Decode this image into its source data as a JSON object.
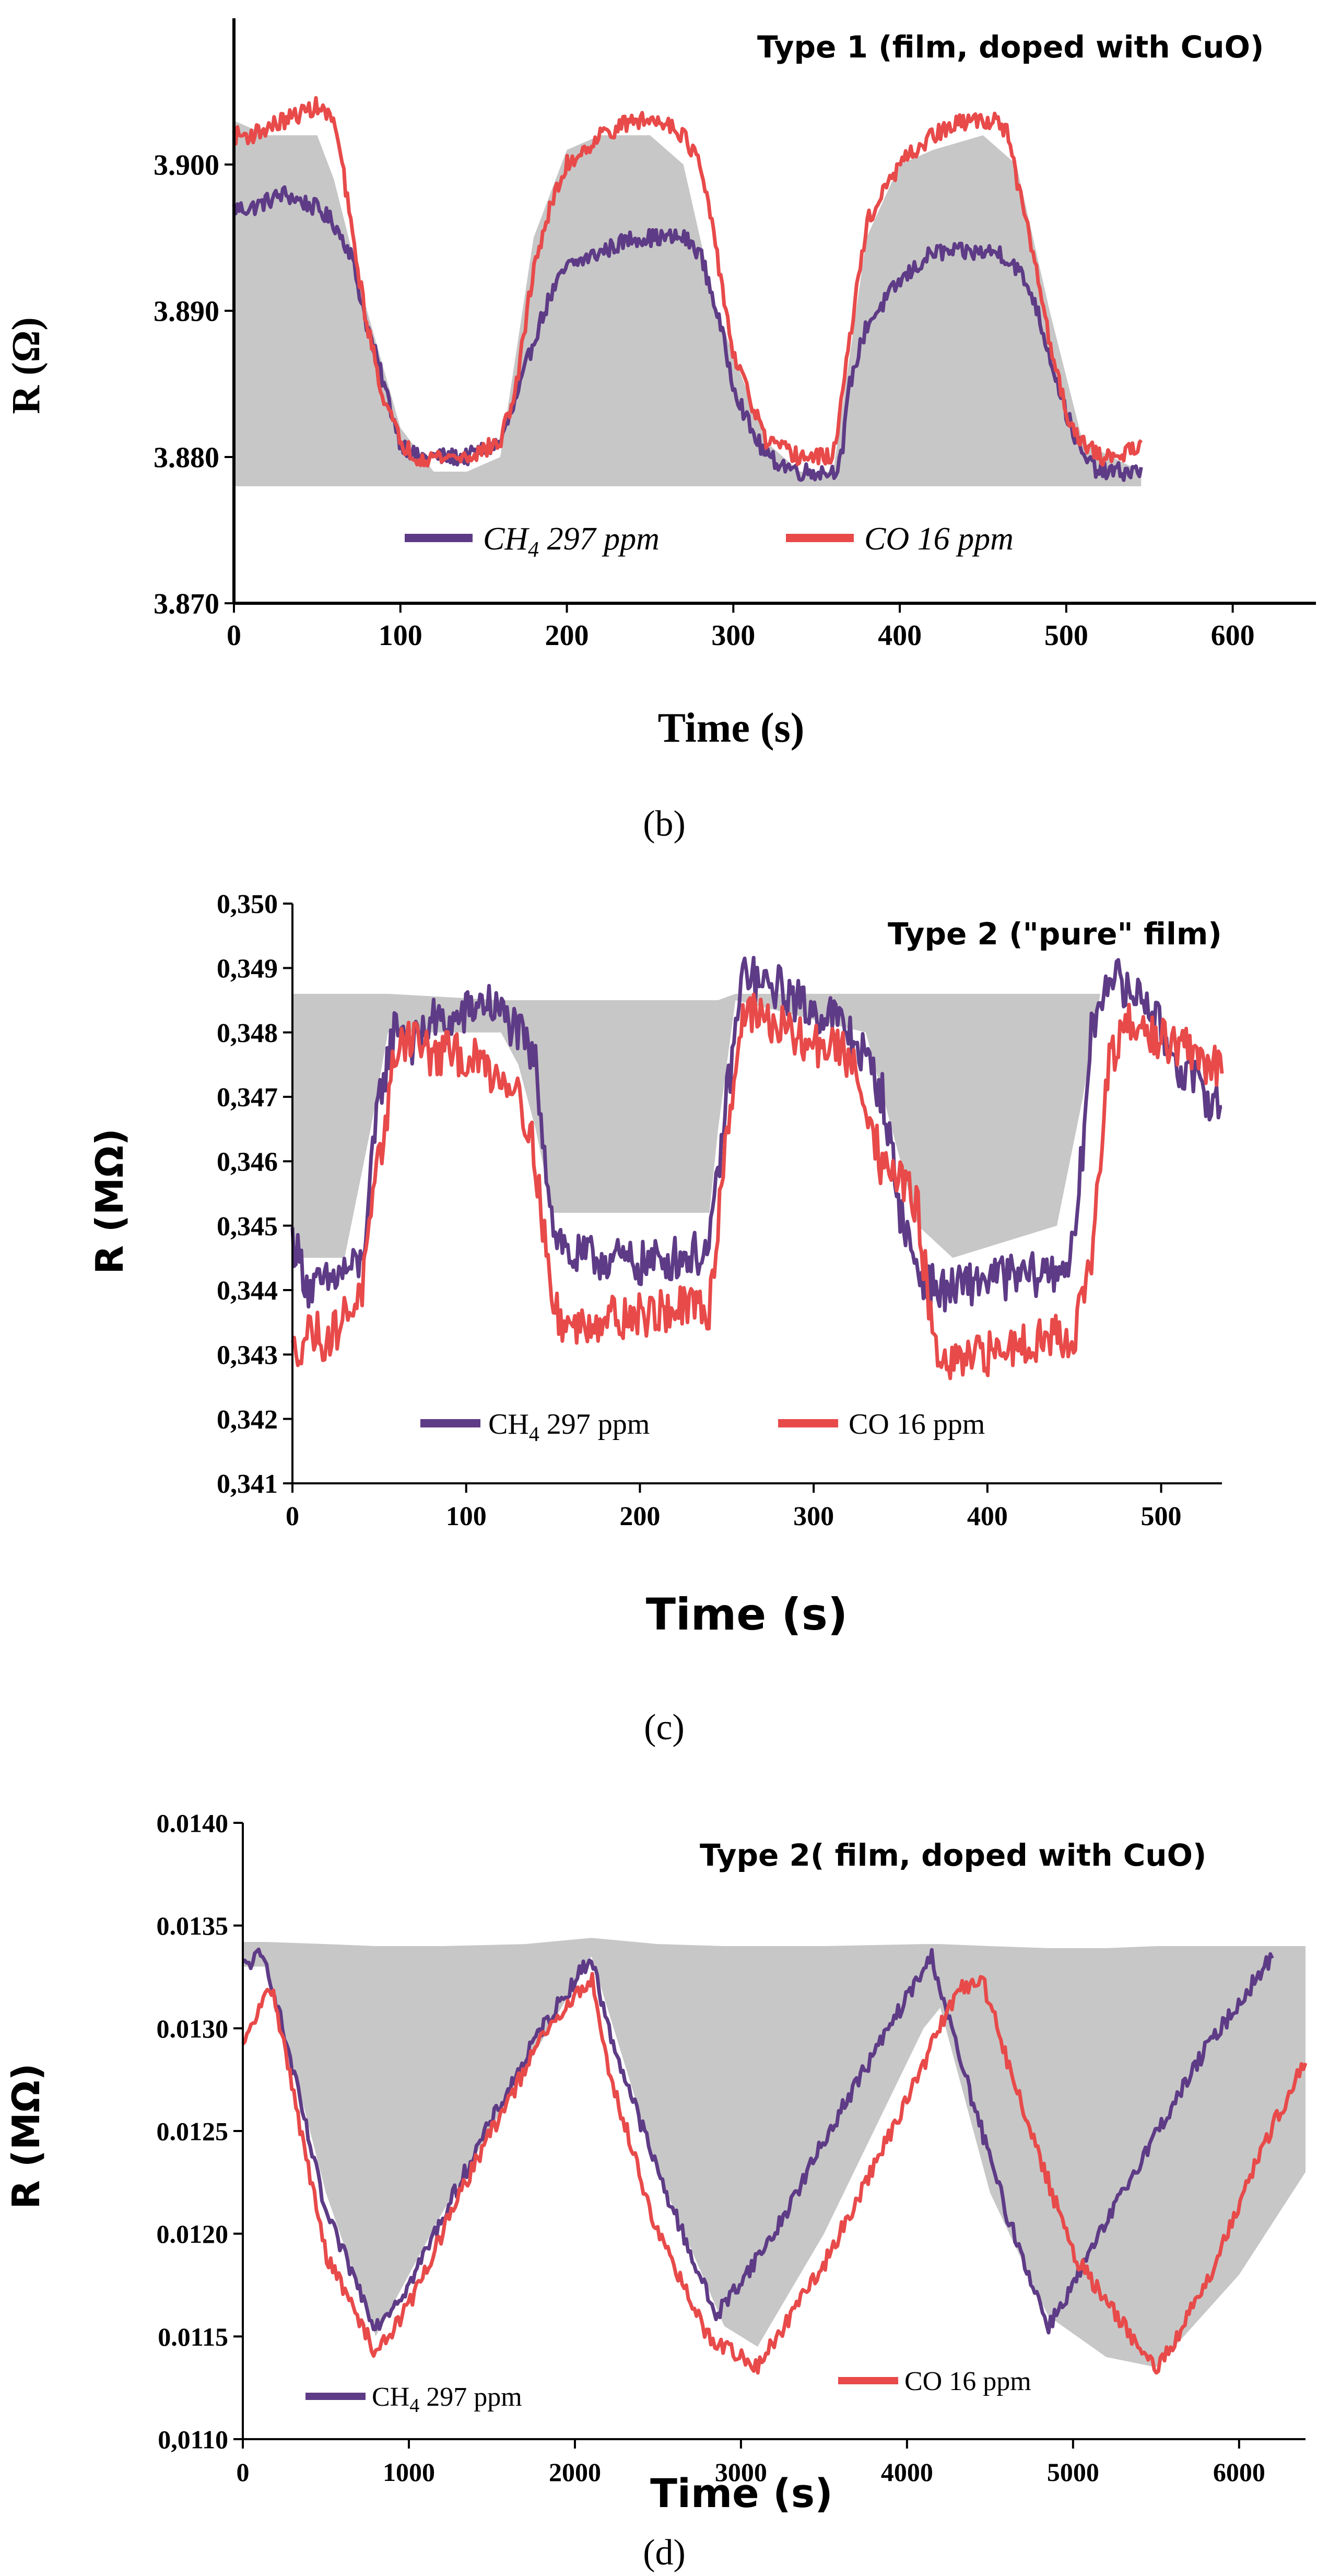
{
  "figure": {
    "colors": {
      "ch4": "#5e3b86",
      "co": "#e84a4a",
      "fill": "#c7c7c7",
      "axis": "#000000"
    }
  },
  "chart_data": [
    {
      "type": "line",
      "panel_label": "(b)",
      "title": "Type 1 (film, doped with CuO)",
      "xlabel": "Time (s)",
      "ylabel": "R (Ω)",
      "xlim": [
        0,
        650
      ],
      "ylim": [
        3.87,
        3.91
      ],
      "xticks": [
        "0",
        "100",
        "200",
        "300",
        "400",
        "500",
        "600"
      ],
      "yticks": [
        "3.870",
        "3.880",
        "3.890",
        "3.900"
      ],
      "ytick_values": [
        3.87,
        3.88,
        3.89,
        3.9
      ],
      "xtick_values": [
        0,
        100,
        200,
        300,
        400,
        500,
        600
      ],
      "legend": [
        "CH4 297 ppm",
        "CO 16 ppm"
      ],
      "legend_location": "lower-center",
      "noise": 0.0006,
      "fill_envelope": {
        "x": [
          0,
          20,
          50,
          60,
          80,
          100,
          120,
          140,
          160,
          180,
          200,
          220,
          250,
          270,
          290,
          320,
          340,
          360,
          380,
          400,
          420,
          450,
          470,
          490,
          510,
          545
        ],
        "upper": [
          3.903,
          3.902,
          3.902,
          3.899,
          3.89,
          3.882,
          3.879,
          3.879,
          3.88,
          3.895,
          3.901,
          3.902,
          3.902,
          3.9,
          3.89,
          3.881,
          3.879,
          3.879,
          3.895,
          3.9,
          3.901,
          3.902,
          3.9,
          3.89,
          3.881,
          3.879
        ],
        "lower": [
          3.878,
          3.878,
          3.878,
          3.878,
          3.878,
          3.878,
          3.878,
          3.878,
          3.878,
          3.878,
          3.878,
          3.878,
          3.878,
          3.878,
          3.878,
          3.878,
          3.878,
          3.878,
          3.878,
          3.878,
          3.878,
          3.878,
          3.878,
          3.878,
          3.878,
          3.878
        ]
      },
      "series": [
        {
          "name": "CH4 297 ppm",
          "color_key": "ch4",
          "x": [
            0,
            10,
            30,
            50,
            60,
            70,
            80,
            90,
            100,
            110,
            120,
            140,
            160,
            170,
            180,
            190,
            200,
            220,
            240,
            260,
            270,
            280,
            290,
            300,
            310,
            320,
            340,
            350,
            360,
            365,
            370,
            380,
            400,
            420,
            440,
            460,
            470,
            480,
            490,
            500,
            510,
            520,
            530,
            545
          ],
          "y": [
            3.897,
            3.897,
            3.898,
            3.897,
            3.896,
            3.894,
            3.889,
            3.885,
            3.881,
            3.88,
            3.88,
            3.88,
            3.881,
            3.884,
            3.888,
            3.891,
            3.893,
            3.894,
            3.895,
            3.895,
            3.895,
            3.894,
            3.89,
            3.885,
            3.882,
            3.88,
            3.879,
            3.879,
            3.879,
            3.88,
            3.885,
            3.889,
            3.892,
            3.894,
            3.894,
            3.894,
            3.893,
            3.891,
            3.887,
            3.883,
            3.88,
            3.879,
            3.879,
            3.879
          ]
        },
        {
          "name": "CO 16 ppm",
          "color_key": "co",
          "x": [
            0,
            10,
            30,
            50,
            60,
            65,
            70,
            80,
            90,
            100,
            110,
            120,
            140,
            160,
            170,
            180,
            190,
            200,
            220,
            240,
            260,
            270,
            280,
            290,
            300,
            320,
            340,
            350,
            360,
            370,
            380,
            400,
            420,
            440,
            460,
            465,
            470,
            480,
            490,
            500,
            510,
            520,
            530,
            545
          ],
          "y": [
            3.902,
            3.902,
            3.903,
            3.904,
            3.903,
            3.9,
            3.896,
            3.889,
            3.884,
            3.881,
            3.88,
            3.88,
            3.88,
            3.881,
            3.885,
            3.893,
            3.897,
            3.9,
            3.902,
            3.903,
            3.903,
            3.902,
            3.9,
            3.894,
            3.887,
            3.881,
            3.88,
            3.88,
            3.88,
            3.888,
            3.896,
            3.9,
            3.902,
            3.903,
            3.903,
            3.902,
            3.899,
            3.894,
            3.888,
            3.883,
            3.881,
            3.88,
            3.88,
            3.881
          ]
        }
      ]
    },
    {
      "type": "line",
      "panel_label": "(c)",
      "title": "Type 2 (\"pure\" film)",
      "xlabel": "Time (s)",
      "ylabel": "R (MΩ)",
      "xlim": [
        0,
        535
      ],
      "ylim": [
        0.341,
        0.35
      ],
      "xticks": [
        "0",
        "100",
        "200",
        "300",
        "400",
        "500"
      ],
      "yticks": [
        "0,341",
        "0,342",
        "0,343",
        "0,344",
        "0,345",
        "0,346",
        "0,347",
        "0,348",
        "0,349",
        "0,350"
      ],
      "ytick_values": [
        0.341,
        0.342,
        0.343,
        0.344,
        0.345,
        0.346,
        0.347,
        0.348,
        0.349,
        0.35
      ],
      "xtick_values": [
        0,
        100,
        200,
        300,
        400,
        500
      ],
      "legend": [
        "CH4 297 ppm",
        "CO 16 ppm"
      ],
      "legend_location": "lower-center",
      "noise": 0.00035,
      "fill_envelope": {
        "x": [
          0,
          15,
          30,
          45,
          55,
          120,
          130,
          140,
          150,
          240,
          245,
          255,
          330,
          345,
          360,
          380,
          440,
          455,
          465
        ],
        "upper": [
          0.3486,
          0.3486,
          0.3486,
          0.3486,
          0.3486,
          0.3485,
          0.3485,
          0.3485,
          0.3485,
          0.3485,
          0.3485,
          0.3486,
          0.3486,
          0.3486,
          0.3486,
          0.3486,
          0.3486,
          0.3486,
          0.3486
        ],
        "lower": [
          0.3445,
          0.3445,
          0.3445,
          0.3465,
          0.348,
          0.348,
          0.3475,
          0.3465,
          0.3452,
          0.3452,
          0.3465,
          0.3485,
          0.348,
          0.3465,
          0.345,
          0.3445,
          0.345,
          0.347,
          0.3486
        ]
      },
      "series": [
        {
          "name": "CH4 297 ppm",
          "color_key": "ch4",
          "x": [
            0,
            10,
            20,
            30,
            40,
            50,
            60,
            70,
            80,
            90,
            100,
            110,
            120,
            130,
            140,
            150,
            160,
            180,
            200,
            220,
            240,
            250,
            260,
            270,
            280,
            290,
            300,
            310,
            320,
            330,
            340,
            350,
            360,
            370,
            380,
            400,
            420,
            440,
            450,
            460,
            470,
            480,
            490,
            500,
            510,
            520,
            535
          ],
          "y": [
            0.3448,
            0.344,
            0.3441,
            0.3443,
            0.3444,
            0.347,
            0.3482,
            0.3478,
            0.3482,
            0.3481,
            0.3483,
            0.3485,
            0.3483,
            0.348,
            0.3475,
            0.345,
            0.3445,
            0.3445,
            0.3444,
            0.3445,
            0.3446,
            0.347,
            0.349,
            0.3487,
            0.3487,
            0.3485,
            0.3483,
            0.3483,
            0.348,
            0.3476,
            0.347,
            0.3452,
            0.3443,
            0.344,
            0.344,
            0.3442,
            0.3442,
            0.3443,
            0.3446,
            0.348,
            0.349,
            0.3486,
            0.3486,
            0.348,
            0.3475,
            0.3472,
            0.3468
          ]
        },
        {
          "name": "CO 16 ppm",
          "color_key": "co",
          "x": [
            0,
            10,
            20,
            30,
            40,
            50,
            60,
            70,
            80,
            90,
            100,
            110,
            120,
            130,
            140,
            150,
            160,
            180,
            200,
            220,
            240,
            250,
            260,
            270,
            280,
            290,
            300,
            310,
            320,
            330,
            340,
            350,
            360,
            370,
            380,
            400,
            420,
            440,
            450,
            460,
            470,
            480,
            490,
            500,
            510,
            520,
            535
          ],
          "y": [
            0.343,
            0.3434,
            0.3432,
            0.3436,
            0.344,
            0.346,
            0.3478,
            0.348,
            0.3476,
            0.3477,
            0.3476,
            0.3475,
            0.3473,
            0.3472,
            0.346,
            0.3437,
            0.3434,
            0.3436,
            0.3436,
            0.3437,
            0.3437,
            0.3465,
            0.3484,
            0.3482,
            0.3481,
            0.3479,
            0.3478,
            0.3478,
            0.3476,
            0.347,
            0.3458,
            0.3458,
            0.3452,
            0.343,
            0.3428,
            0.343,
            0.3432,
            0.3433,
            0.3433,
            0.3445,
            0.3475,
            0.3481,
            0.348,
            0.3479,
            0.3478,
            0.3476,
            0.3474
          ]
        }
      ]
    },
    {
      "type": "line",
      "panel_label": "(d)",
      "title": "Type 2( film, doped with CuO)",
      "xlabel": "Time (s)",
      "ylabel": "R (MΩ)",
      "xlim": [
        0,
        6400
      ],
      "ylim": [
        0.011,
        0.014
      ],
      "xticks": [
        "0",
        "1000",
        "2000",
        "3000",
        "4000",
        "5000",
        "6000"
      ],
      "yticks": [
        "0,0110",
        "0.0115",
        "0.0120",
        "0.0125",
        "0.0130",
        "0.0135",
        "0.0140"
      ],
      "ytick_values": [
        0.011,
        0.0115,
        0.012,
        0.0125,
        0.013,
        0.0135,
        0.014
      ],
      "xtick_values": [
        0,
        1000,
        2000,
        3000,
        4000,
        5000,
        6000
      ],
      "legend": [
        "CH4 297 ppm",
        "CO 16 ppm"
      ],
      "legend_location": "bottom",
      "noise": 4e-05,
      "fill_envelope": {
        "x": [
          0,
          150,
          500,
          800,
          1200,
          1700,
          2100,
          2500,
          2900,
          3100,
          3500,
          4100,
          4200,
          4500,
          4850,
          5200,
          5500,
          6000,
          6400
        ],
        "upper": [
          0.01342,
          0.01342,
          0.01341,
          0.0134,
          0.0134,
          0.01341,
          0.01344,
          0.01341,
          0.0134,
          0.0134,
          0.0134,
          0.01341,
          0.01341,
          0.0134,
          0.01339,
          0.01339,
          0.0134,
          0.0134,
          0.0134
        ],
        "lower": [
          0.0133,
          0.0133,
          0.0122,
          0.0115,
          0.0121,
          0.0128,
          0.01335,
          0.0123,
          0.01155,
          0.01145,
          0.012,
          0.013,
          0.0131,
          0.0122,
          0.0116,
          0.0114,
          0.01135,
          0.0118,
          0.0123
        ]
      },
      "series": [
        {
          "name": "CH4 297 ppm",
          "color_key": "ch4",
          "x": [
            0,
            100,
            150,
            300,
            500,
            800,
            1000,
            1400,
            1800,
            2100,
            2200,
            2500,
            2850,
            3200,
            3600,
            4000,
            4150,
            4300,
            4600,
            4850,
            5000,
            5400,
            5800,
            6200
          ],
          "y": [
            0.0133,
            0.01335,
            0.0133,
            0.0128,
            0.0121,
            0.01155,
            0.01175,
            0.0124,
            0.013,
            0.01335,
            0.013,
            0.0123,
            0.0116,
            0.012,
            0.0126,
            0.01315,
            0.01335,
            0.0129,
            0.0121,
            0.01155,
            0.01175,
            0.01235,
            0.0129,
            0.01335
          ]
        },
        {
          "name": "CO 16 ppm",
          "color_key": "co",
          "x": [
            0,
            100,
            180,
            300,
            500,
            800,
            1000,
            1400,
            1800,
            2100,
            2200,
            2500,
            2800,
            3100,
            3500,
            4000,
            4300,
            4450,
            4600,
            5000,
            5500,
            5800,
            6100,
            6400
          ],
          "y": [
            0.0129,
            0.0131,
            0.0132,
            0.0127,
            0.0119,
            0.01142,
            0.01165,
            0.01235,
            0.01295,
            0.01325,
            0.0128,
            0.012,
            0.0115,
            0.01135,
            0.01185,
            0.01265,
            0.01318,
            0.01325,
            0.01285,
            0.0119,
            0.01133,
            0.01175,
            0.01235,
            0.01285
          ]
        }
      ]
    }
  ]
}
